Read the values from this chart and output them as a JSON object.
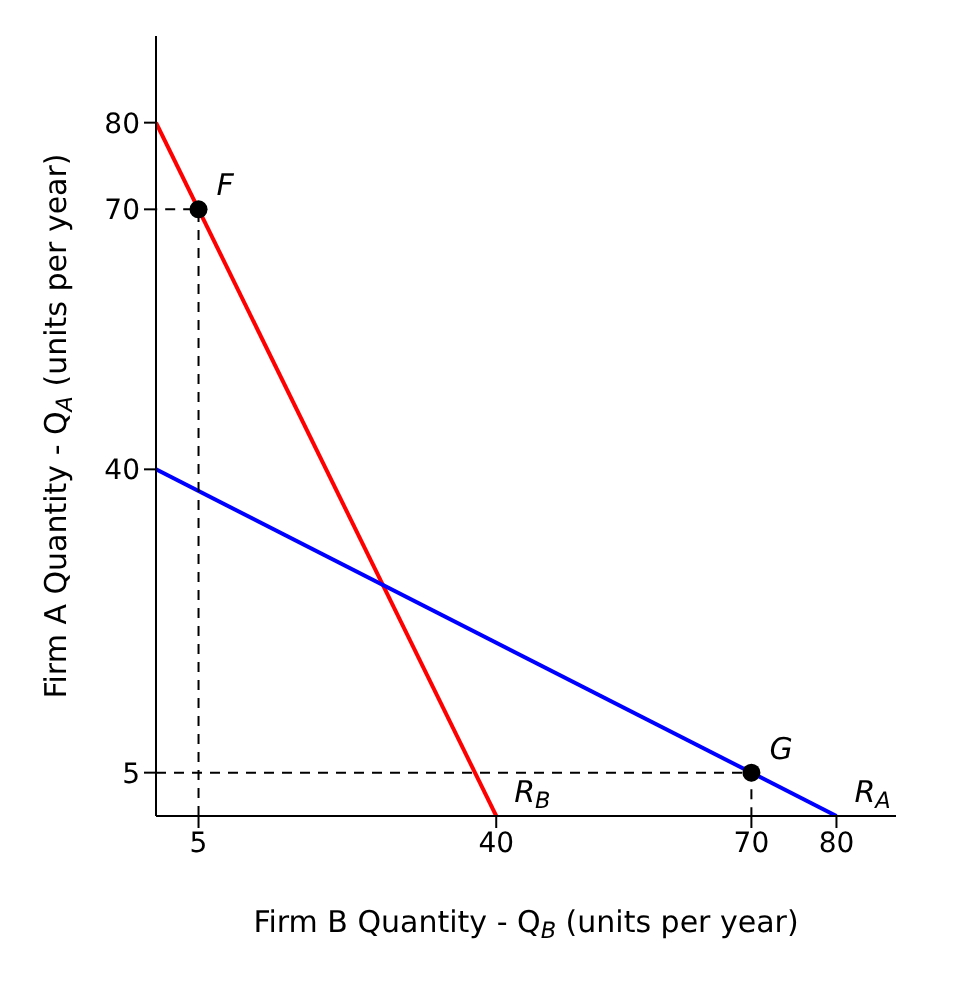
{
  "chart_data": {
    "type": "line",
    "xlabel": "Firm B Quantity - Q$_{B}$ (units per year)",
    "ylabel": "Firm A Quantity - Q$_{A}$ (units per year)",
    "xlim": [
      0,
      87
    ],
    "ylim": [
      0,
      90
    ],
    "xticks": [
      5,
      40,
      70,
      80
    ],
    "yticks": [
      5,
      40,
      70,
      80
    ],
    "series": [
      {
        "color": "#ff0000",
        "x": [
          0,
          40
        ],
        "values": [
          80,
          0
        ]
      },
      {
        "color": "#0000ff",
        "x": [
          0,
          80
        ],
        "values": [
          40,
          0
        ]
      },
      {
        "color": "#000000",
        "line_style": "dashed",
        "x": [
          5,
          5,
          0
        ],
        "values": [
          0,
          70,
          70
        ]
      },
      {
        "color": "#000000",
        "line_style": "dashed",
        "x": [
          0,
          70,
          70
        ],
        "values": [
          5,
          5,
          0
        ]
      },
      {
        "type": "scatter",
        "marker": "circle",
        "color": "#000000",
        "x": [
          5,
          70
        ],
        "values": [
          70,
          5
        ]
      }
    ],
    "annotations": [
      {
        "text": "F",
        "x": 5,
        "y": 70
      },
      {
        "text": "G",
        "x": 70,
        "y": 5
      },
      {
        "text": "R$_{B}$",
        "x": 40,
        "y": 0
      },
      {
        "text": "R$_{A}$",
        "x": 80,
        "y": 0
      }
    ]
  }
}
